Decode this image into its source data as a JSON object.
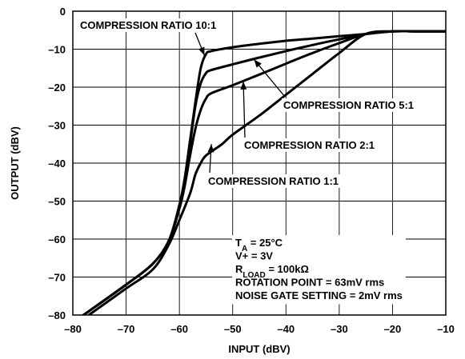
{
  "chart_data": {
    "type": "line",
    "xlabel": "INPUT (dBV)",
    "ylabel": "OUTPUT (dBV)",
    "xlim": [
      -80,
      -10
    ],
    "ylim": [
      -80,
      0
    ],
    "xticks": [
      -80,
      -70,
      -60,
      -50,
      -40,
      -30,
      -20,
      -10
    ],
    "yticks": [
      0,
      -10,
      -20,
      -30,
      -40,
      -50,
      -60,
      -70,
      -80
    ],
    "xtick_labels": [
      "–80",
      "–70",
      "–60",
      "–50",
      "–40",
      "–30",
      "–20",
      "–10"
    ],
    "ytick_labels": [
      "0",
      "–10",
      "–20",
      "–30",
      "–40",
      "–50",
      "–60",
      "–70",
      "–80"
    ],
    "grid": true,
    "series": [
      {
        "name": "COMPRESSION RATIO 10:1",
        "points": [
          [
            -78,
            -80
          ],
          [
            -70,
            -72
          ],
          [
            -65,
            -66.5
          ],
          [
            -62,
            -60.5
          ],
          [
            -60,
            -51
          ],
          [
            -59,
            -44
          ],
          [
            -58,
            -34
          ],
          [
            -57,
            -24
          ],
          [
            -56,
            -15
          ],
          [
            -55,
            -11.3
          ],
          [
            -54,
            -10.5
          ],
          [
            -50,
            -9.5
          ],
          [
            -45,
            -8.6
          ],
          [
            -40,
            -7.8
          ],
          [
            -35,
            -7.2
          ],
          [
            -30,
            -6.6
          ],
          [
            -25,
            -6.0
          ],
          [
            -20,
            -5.3
          ],
          [
            -15,
            -5.3
          ],
          [
            -10,
            -5.3
          ]
        ]
      },
      {
        "name": "COMPRESSION RATIO 5:1",
        "points": [
          [
            -78,
            -80
          ],
          [
            -70,
            -72
          ],
          [
            -65,
            -66.5
          ],
          [
            -62,
            -60.5
          ],
          [
            -60,
            -51.5
          ],
          [
            -59,
            -44.5
          ],
          [
            -58,
            -35
          ],
          [
            -57,
            -25
          ],
          [
            -56,
            -19
          ],
          [
            -55,
            -16.3
          ],
          [
            -54,
            -15.5
          ],
          [
            -50,
            -14
          ],
          [
            -45,
            -12.2
          ],
          [
            -40,
            -10.5
          ],
          [
            -35,
            -8.9
          ],
          [
            -30,
            -7.4
          ],
          [
            -25,
            -6.0
          ],
          [
            -20,
            -5.3
          ],
          [
            -15,
            -5.3
          ],
          [
            -10,
            -5.3
          ]
        ]
      },
      {
        "name": "COMPRESSION RATIO 2:1",
        "points": [
          [
            -78,
            -80
          ],
          [
            -70,
            -72
          ],
          [
            -65,
            -66.5
          ],
          [
            -62,
            -60.5
          ],
          [
            -60,
            -52
          ],
          [
            -59,
            -46
          ],
          [
            -58,
            -38
          ],
          [
            -57,
            -31
          ],
          [
            -56,
            -26
          ],
          [
            -55,
            -23
          ],
          [
            -54,
            -21.6
          ],
          [
            -50,
            -19.5
          ],
          [
            -45,
            -16.7
          ],
          [
            -40,
            -13.8
          ],
          [
            -35,
            -11
          ],
          [
            -30,
            -8.4
          ],
          [
            -25,
            -6.0
          ],
          [
            -20,
            -5.3
          ],
          [
            -15,
            -5.3
          ],
          [
            -10,
            -5.3
          ]
        ]
      },
      {
        "name": "COMPRESSION RATIO 1:1",
        "points": [
          [
            -77,
            -80
          ],
          [
            -70,
            -73
          ],
          [
            -65,
            -68
          ],
          [
            -62,
            -61.5
          ],
          [
            -60,
            -55
          ],
          [
            -58,
            -48
          ],
          [
            -57,
            -43
          ],
          [
            -56,
            -40
          ],
          [
            -55,
            -38
          ],
          [
            -52,
            -35
          ],
          [
            -50,
            -32.5
          ],
          [
            -45,
            -27.5
          ],
          [
            -40,
            -22
          ],
          [
            -35,
            -16.5
          ],
          [
            -30,
            -11
          ],
          [
            -25,
            -6.0
          ],
          [
            -20,
            -5.3
          ],
          [
            -15,
            -5.3
          ],
          [
            -10,
            -5.3
          ]
        ]
      }
    ],
    "annotations": [
      {
        "text": "COMPRESSION RATIO 10:1",
        "anchor": [
          -55,
          -11
        ]
      },
      {
        "text": "COMPRESSION RATIO 5:1",
        "anchor": [
          -46,
          -12.7
        ]
      },
      {
        "text": "COMPRESSION RATIO 2:1",
        "anchor": [
          -48,
          -18.5
        ]
      },
      {
        "text": "COMPRESSION RATIO 1:1",
        "anchor": [
          -54,
          -35
        ]
      }
    ],
    "conditions": [
      {
        "main": "T",
        "sub": "A",
        "rest": " = 25°C"
      },
      {
        "main": "V+ = 3V",
        "sub": "",
        "rest": ""
      },
      {
        "main": "R",
        "sub": "LOAD",
        "rest": " = 100kΩ"
      },
      {
        "main": "ROTATION POINT = 63mV rms",
        "sub": "",
        "rest": ""
      },
      {
        "main": "NOISE GATE SETTING = 2mV rms",
        "sub": "",
        "rest": ""
      }
    ]
  }
}
